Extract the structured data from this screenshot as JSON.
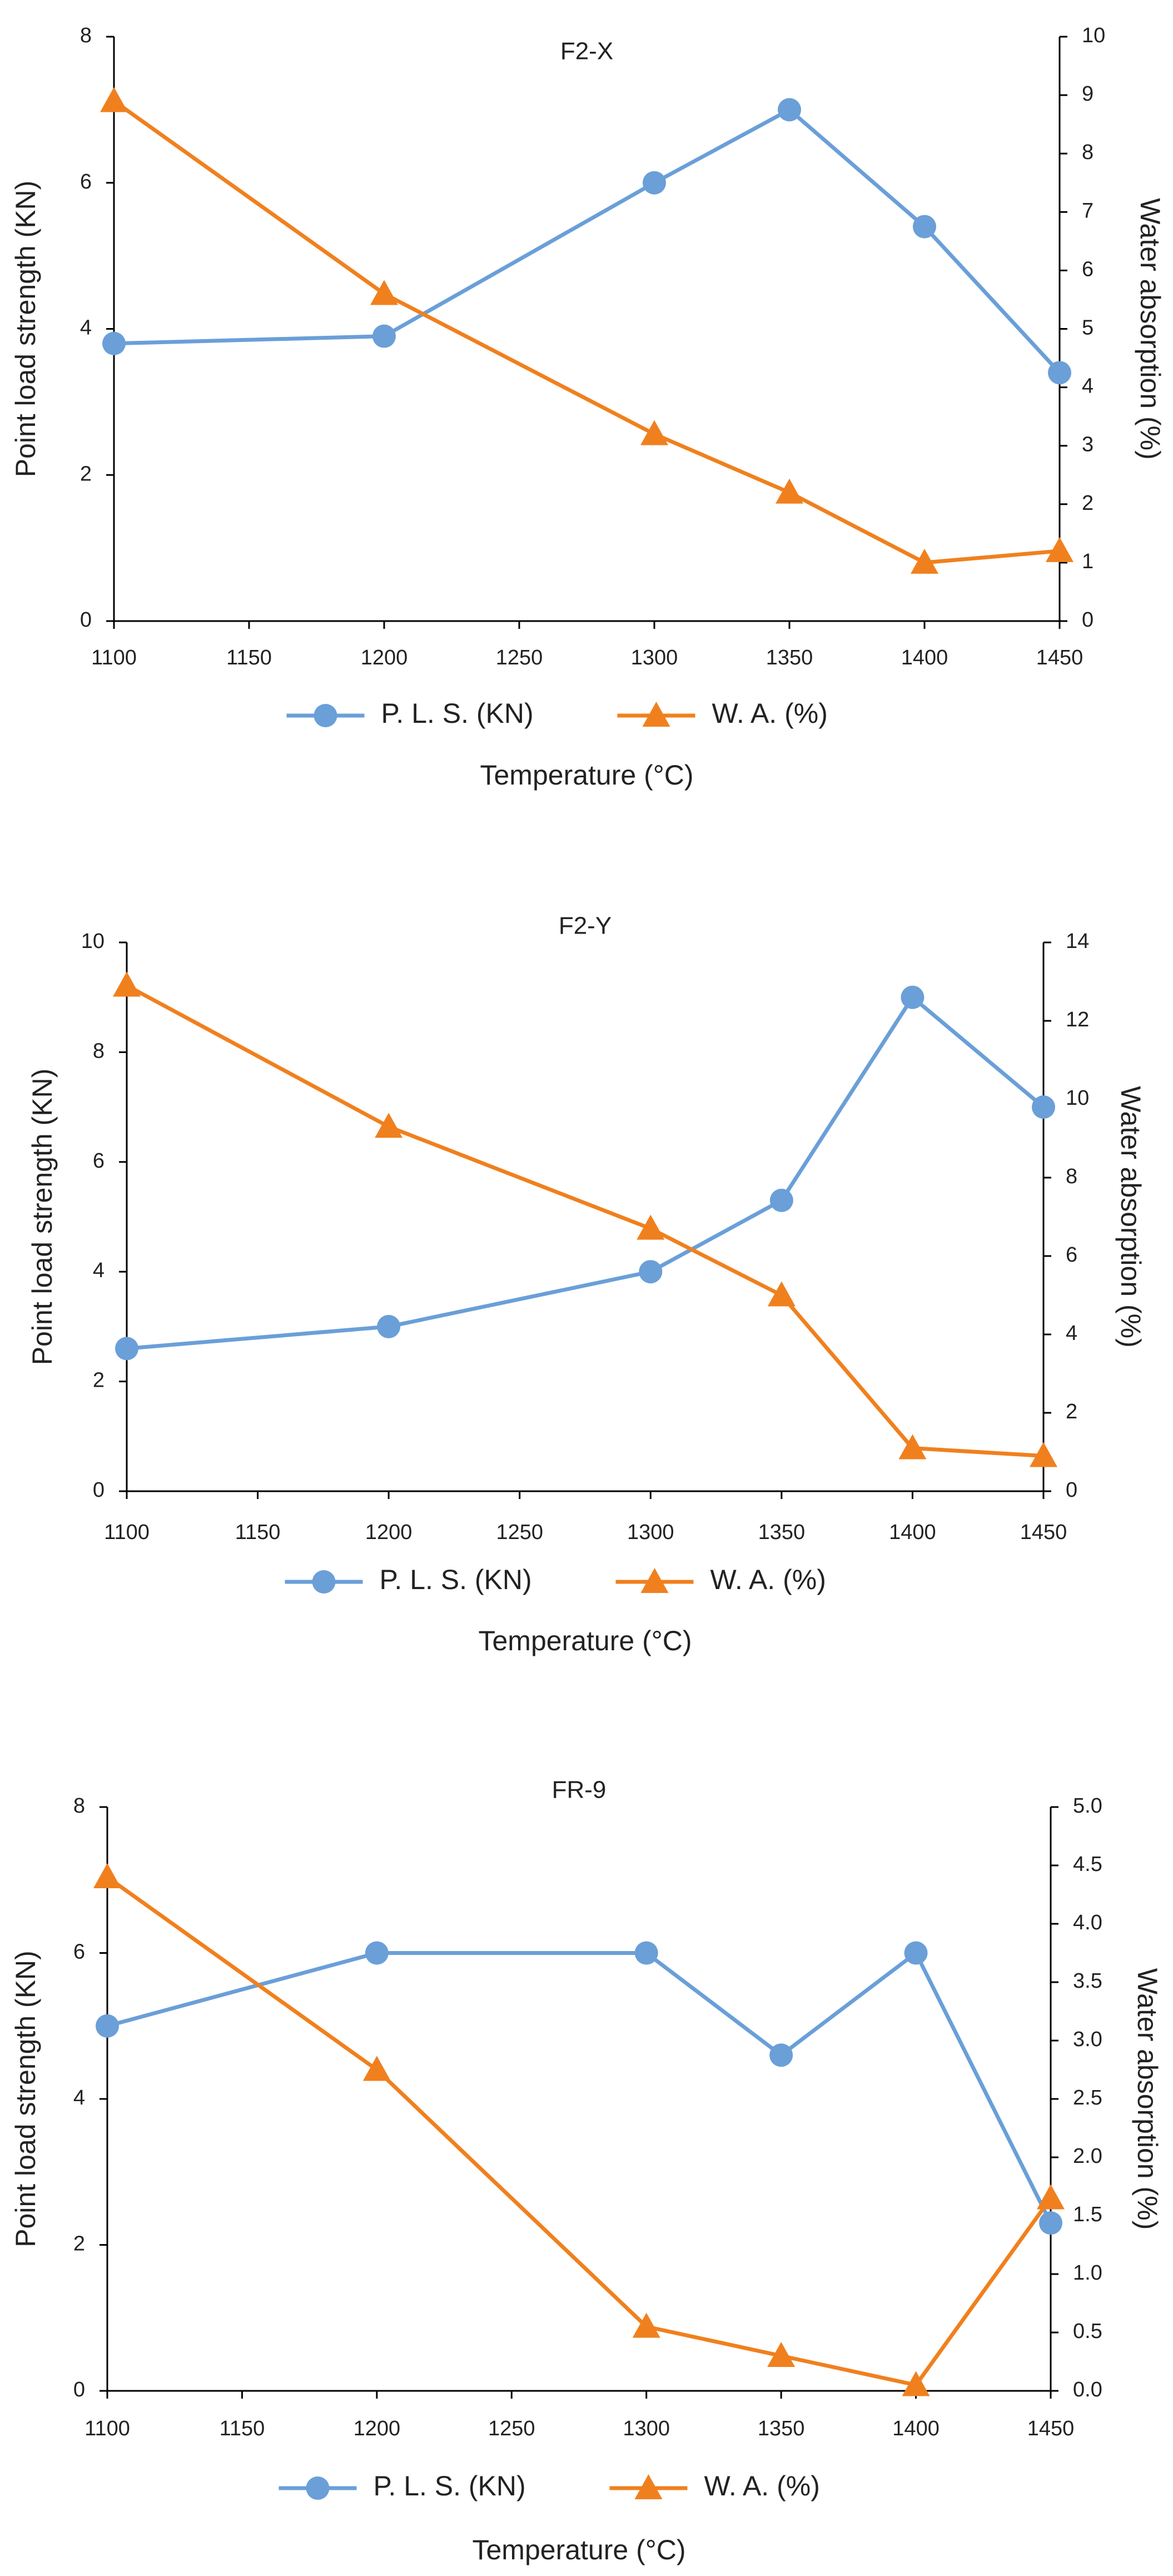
{
  "colors": {
    "pls": "#6A9FD8",
    "wa": "#F0801E",
    "axis": "#000000",
    "text": "#222222"
  },
  "chart_data": [
    {
      "type": "line",
      "title": "F2-X",
      "xlabel": "Temperature (°C)",
      "ylabel_left": "Point load strength (KN)",
      "ylabel_right": "Water absorption (%)",
      "x": [
        1100,
        1200,
        1300,
        1350,
        1400,
        1450
      ],
      "xlim": [
        1100,
        1450
      ],
      "xticks": [
        1100,
        1150,
        1200,
        1250,
        1300,
        1350,
        1400,
        1450
      ],
      "ylim_left": [
        0,
        8
      ],
      "yticks_left": [
        "0",
        "2",
        "4",
        "6",
        "8"
      ],
      "ylim_right": [
        0,
        10
      ],
      "yticks_right": [
        "0",
        "1",
        "2",
        "3",
        "4",
        "5",
        "6",
        "7",
        "8",
        "9",
        "10"
      ],
      "grid": false,
      "legend_position": "bottom",
      "series": [
        {
          "name": "P. L. S. (KN)",
          "axis": "left",
          "marker": "circle",
          "values": [
            3.8,
            3.9,
            6.0,
            7.0,
            5.4,
            3.4
          ]
        },
        {
          "name": "W. A. (%)",
          "axis": "right",
          "marker": "triangle",
          "values": [
            8.9,
            5.6,
            3.2,
            2.2,
            1.0,
            1.2
          ]
        }
      ]
    },
    {
      "type": "line",
      "title": "F2-Y",
      "xlabel": "Temperature (°C)",
      "ylabel_left": "Point load strength (KN)",
      "ylabel_right": "Water absorption (%)",
      "x": [
        1100,
        1200,
        1300,
        1350,
        1400,
        1450
      ],
      "xlim": [
        1100,
        1450
      ],
      "xticks": [
        1100,
        1150,
        1200,
        1250,
        1300,
        1350,
        1400,
        1450
      ],
      "ylim_left": [
        0,
        10
      ],
      "yticks_left": [
        "0",
        "2",
        "4",
        "6",
        "8",
        "10"
      ],
      "ylim_right": [
        0,
        14
      ],
      "yticks_right": [
        "0",
        "2",
        "4",
        "6",
        "8",
        "10",
        "12",
        "14"
      ],
      "grid": false,
      "legend_position": "bottom",
      "series": [
        {
          "name": "P. L. S. (KN)",
          "axis": "left",
          "marker": "circle",
          "values": [
            2.6,
            3.0,
            4.0,
            5.3,
            9.0,
            7.0
          ]
        },
        {
          "name": "W. A. (%)",
          "axis": "right",
          "marker": "triangle",
          "values": [
            12.9,
            9.3,
            6.7,
            5.0,
            1.1,
            0.9
          ]
        }
      ]
    },
    {
      "type": "line",
      "title": "FR-9",
      "xlabel": "Temperature (°C)",
      "ylabel_left": "Point load strength (KN)",
      "ylabel_right": "Water absorption (%)",
      "x": [
        1100,
        1200,
        1300,
        1350,
        1400,
        1450
      ],
      "xlim": [
        1100,
        1450
      ],
      "xticks": [
        1100,
        1150,
        1200,
        1250,
        1300,
        1350,
        1400,
        1450
      ],
      "ylim_left": [
        0,
        8
      ],
      "yticks_left": [
        "0",
        "2",
        "4",
        "6",
        "8"
      ],
      "ylim_right": [
        0,
        5
      ],
      "yticks_right": [
        "0.0",
        "0.5",
        "1.0",
        "1.5",
        "2.0",
        "2.5",
        "3.0",
        "3.5",
        "4.0",
        "4.5",
        "5.0"
      ],
      "grid": false,
      "legend_position": "bottom",
      "series": [
        {
          "name": "P. L. S. (KN)",
          "axis": "left",
          "marker": "circle",
          "values": [
            5.0,
            6.0,
            6.0,
            4.6,
            6.0,
            2.3
          ]
        },
        {
          "name": "W. A. (%)",
          "axis": "right",
          "marker": "triangle",
          "values": [
            4.4,
            2.75,
            0.55,
            0.3,
            0.05,
            1.65
          ]
        }
      ]
    }
  ]
}
